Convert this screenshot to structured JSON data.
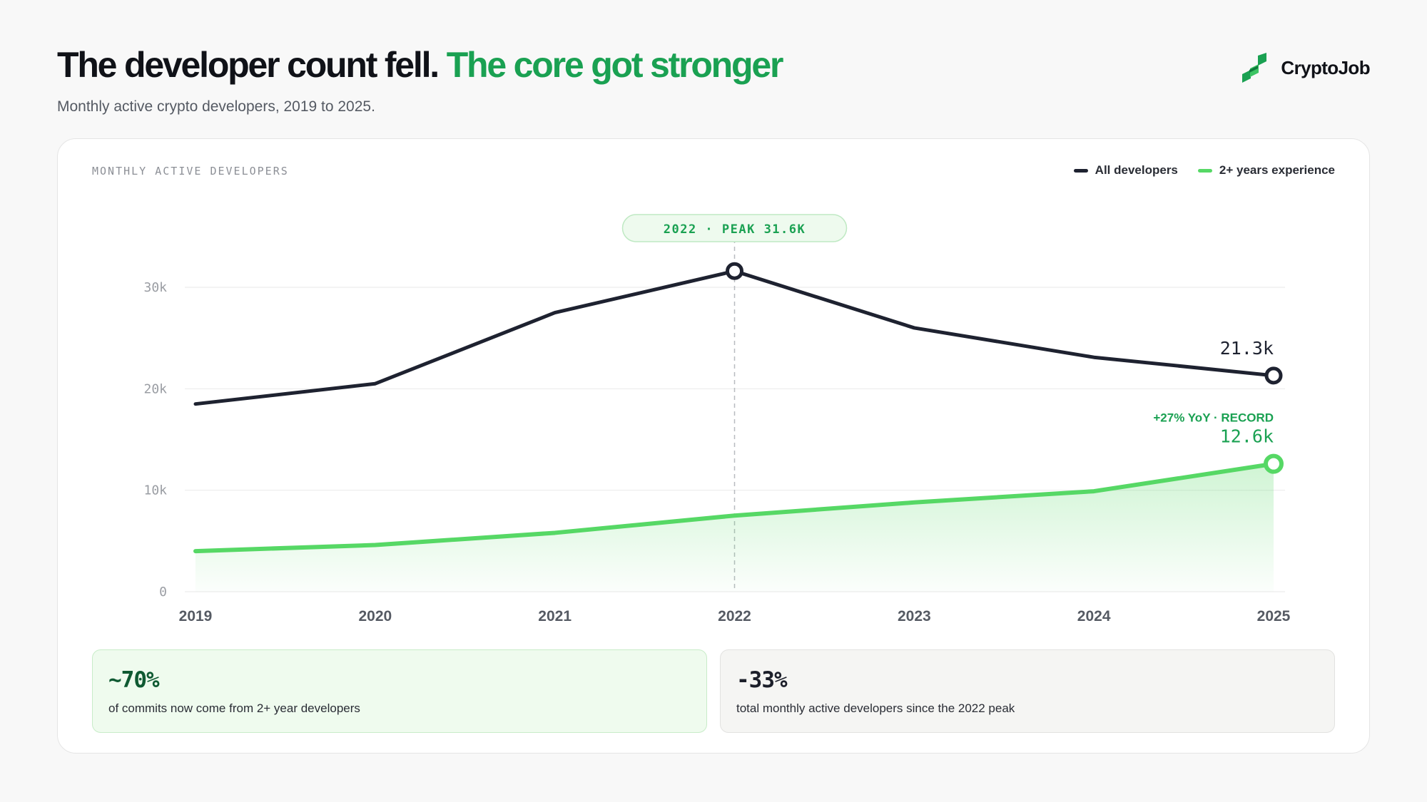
{
  "header": {
    "title_main": "The developer count fell.",
    "title_accent": "The core got stronger",
    "subtitle": "Monthly active crypto developers, 2019 to 2025.",
    "brand_name": "CryptoJob"
  },
  "panel": {
    "label": "MONTHLY ACTIVE DEVELOPERS"
  },
  "colors": {
    "dark": "#1e2230",
    "green": "#56d865",
    "accent_text": "#1aa152",
    "grid": "#ececec"
  },
  "chart_data": {
    "type": "line",
    "x": [
      "2019",
      "2020",
      "2021",
      "2022",
      "2023",
      "2024",
      "2025"
    ],
    "ylim": [
      0,
      30000
    ],
    "yticks": [
      {
        "value": 0,
        "label": "0"
      },
      {
        "value": 10000,
        "label": "10k"
      },
      {
        "value": 20000,
        "label": "20k"
      },
      {
        "value": 30000,
        "label": "30k"
      }
    ],
    "grid": true,
    "legend_position": "top-right",
    "series": [
      {
        "name": "All developers",
        "color": "#1e2230",
        "values": [
          18500,
          20500,
          27500,
          31600,
          26000,
          23100,
          21300
        ]
      },
      {
        "name": "2+ years experience",
        "color": "#56d865",
        "area": true,
        "values": [
          4000,
          4600,
          5800,
          7500,
          8800,
          9900,
          12600
        ]
      }
    ],
    "annotations": {
      "peak_label": "2022 · PEAK 31.6K",
      "peak_index": 3,
      "all_end_label": "21.3k",
      "green_end_label": "12.6k",
      "green_end_sublabel": "+27% YoY · RECORD"
    }
  },
  "stats": [
    {
      "value": "~70%",
      "desc": "of commits now come from 2+ year developers"
    },
    {
      "value": "-33%",
      "desc": "total monthly active developers since the 2022 peak"
    }
  ]
}
